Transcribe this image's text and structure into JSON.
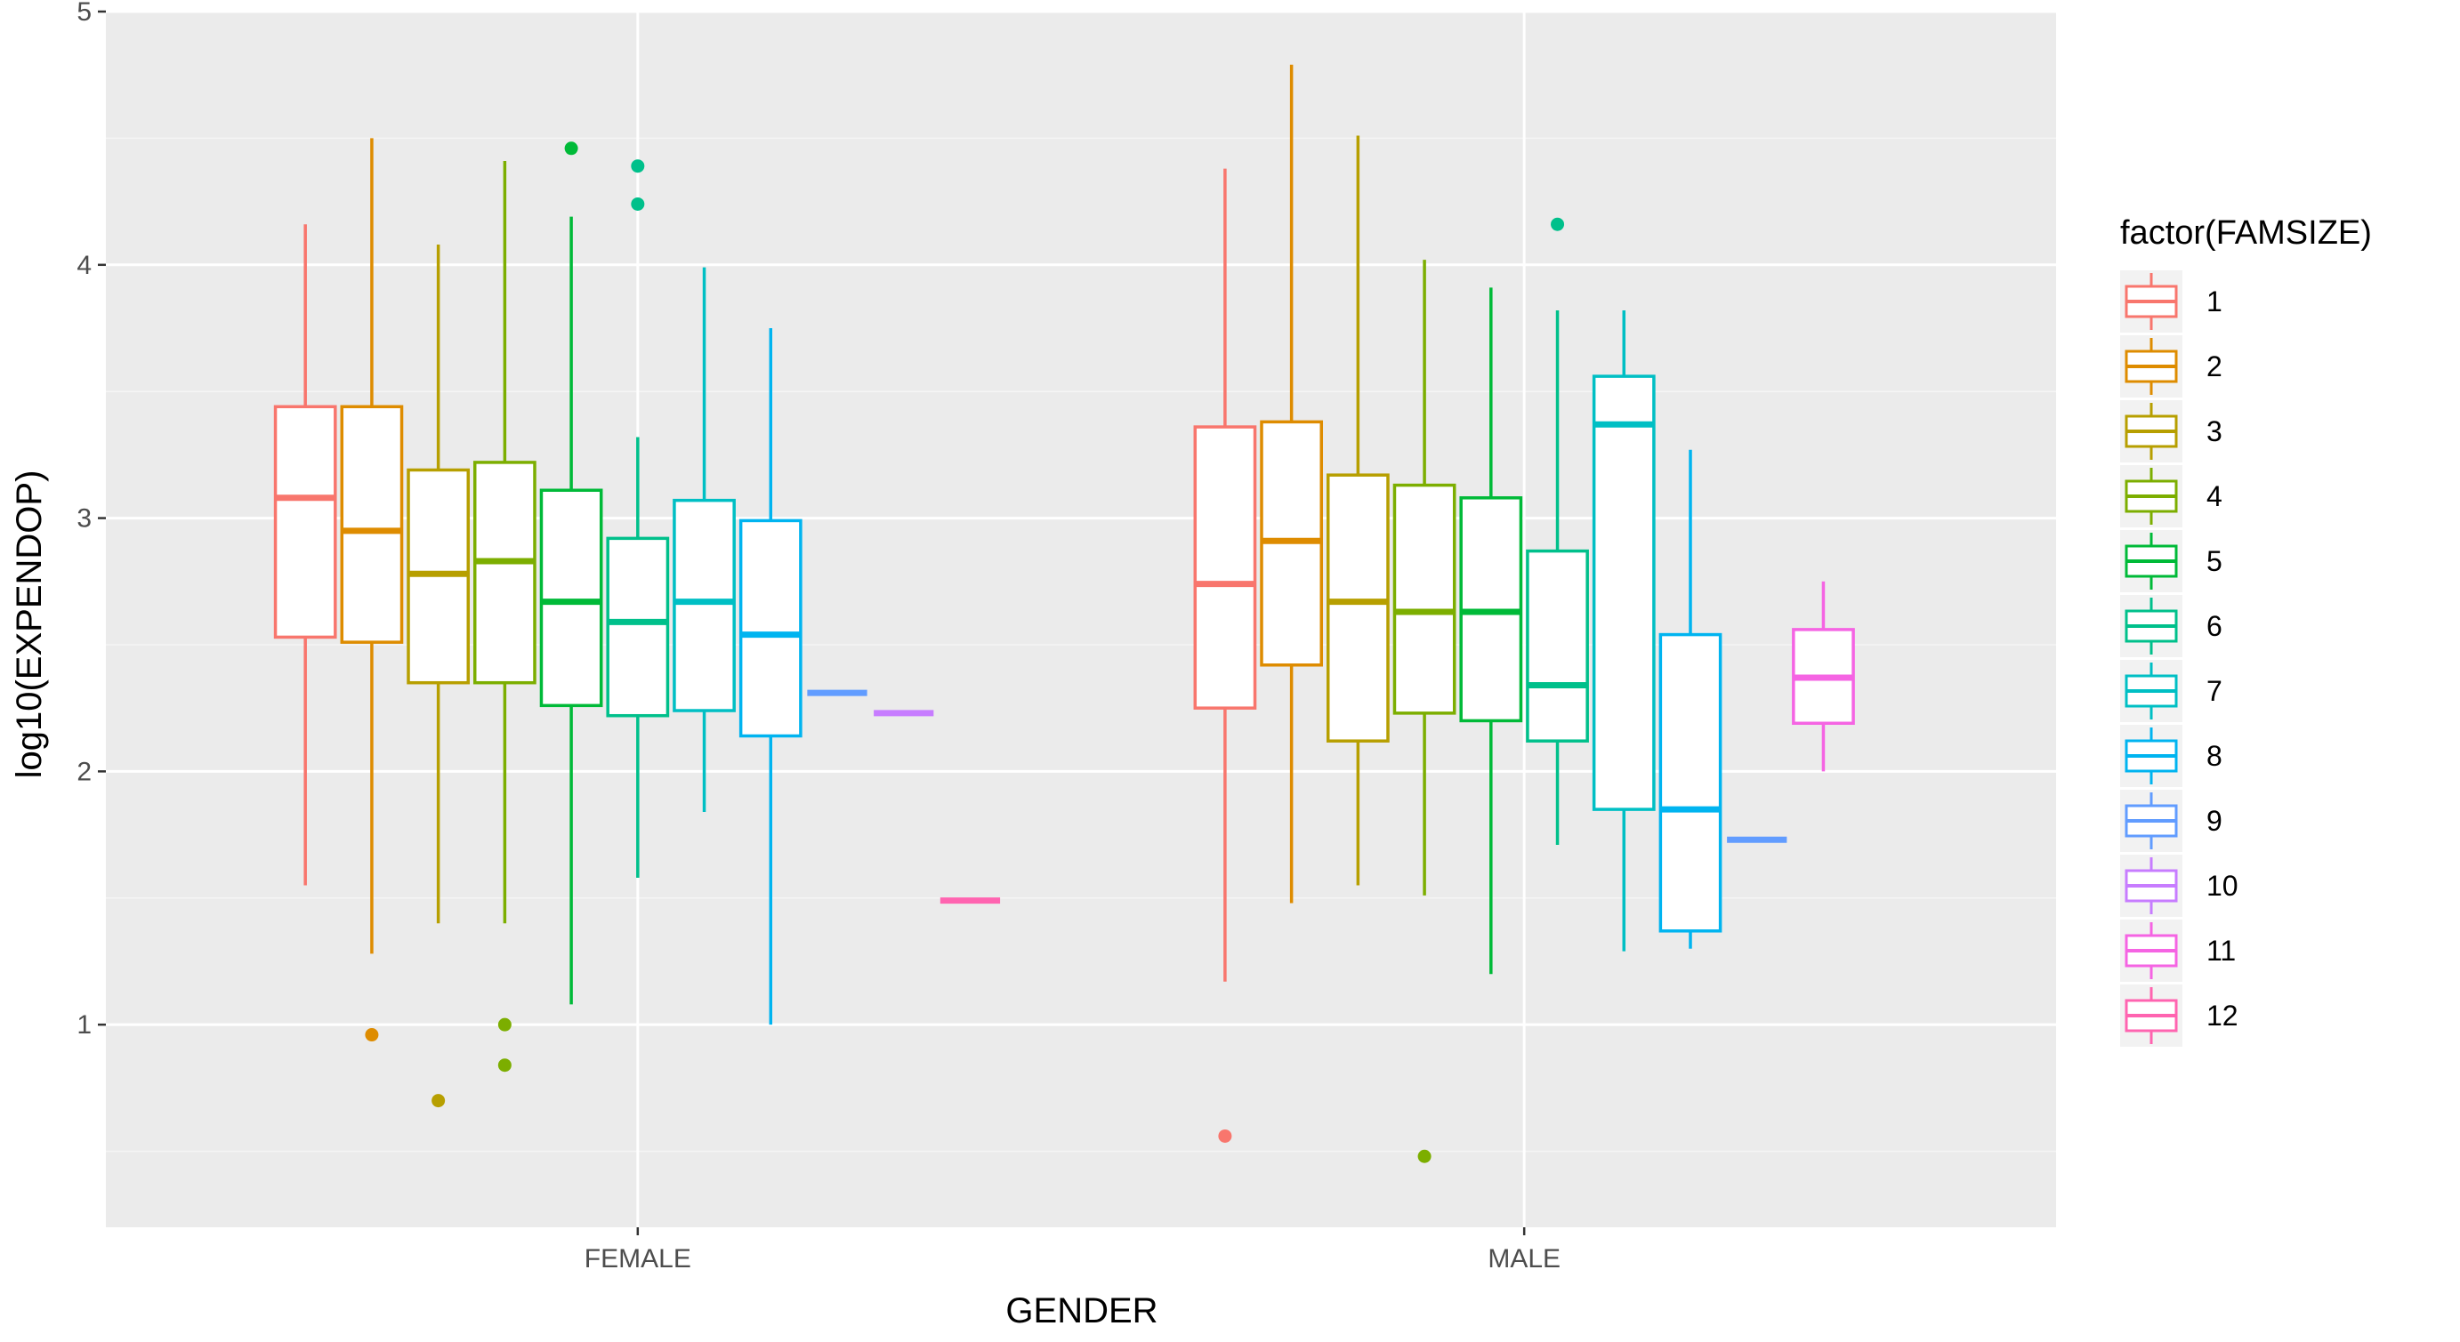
{
  "chart_data": {
    "type": "boxplot",
    "xlabel": "GENDER",
    "ylabel": "log10(EXPENDOP)",
    "categories": [
      "FEMALE",
      "MALE"
    ],
    "ylim": [
      0.2,
      5.0
    ],
    "yticks": [
      1,
      2,
      3,
      4,
      5
    ],
    "grid": true,
    "legend": {
      "title": "factor(FAMSIZE)",
      "position": "right"
    },
    "series": [
      {
        "name": "1",
        "color": "#F8766D",
        "boxes": [
          {
            "group": "FEMALE",
            "min": 1.55,
            "q1": 2.53,
            "median": 3.08,
            "q3": 3.44,
            "max": 4.16,
            "outliers": []
          },
          {
            "group": "MALE",
            "min": 1.17,
            "q1": 2.25,
            "median": 2.74,
            "q3": 3.36,
            "max": 4.38,
            "outliers": [
              0.56
            ]
          }
        ]
      },
      {
        "name": "2",
        "color": "#DE8C00",
        "boxes": [
          {
            "group": "FEMALE",
            "min": 1.28,
            "q1": 2.51,
            "median": 2.95,
            "q3": 3.44,
            "max": 4.5,
            "outliers": [
              0.96
            ]
          },
          {
            "group": "MALE",
            "min": 1.48,
            "q1": 2.42,
            "median": 2.91,
            "q3": 3.38,
            "max": 4.79,
            "outliers": []
          }
        ]
      },
      {
        "name": "3",
        "color": "#B79F00",
        "boxes": [
          {
            "group": "FEMALE",
            "min": 1.4,
            "q1": 2.35,
            "median": 2.78,
            "q3": 3.19,
            "max": 4.08,
            "outliers": [
              0.7
            ]
          },
          {
            "group": "MALE",
            "min": 1.55,
            "q1": 2.12,
            "median": 2.67,
            "q3": 3.17,
            "max": 4.51,
            "outliers": []
          }
        ]
      },
      {
        "name": "4",
        "color": "#7CAE00",
        "boxes": [
          {
            "group": "FEMALE",
            "min": 1.4,
            "q1": 2.35,
            "median": 2.83,
            "q3": 3.22,
            "max": 4.41,
            "outliers": [
              1.0,
              0.84
            ]
          },
          {
            "group": "MALE",
            "min": 1.51,
            "q1": 2.23,
            "median": 2.63,
            "q3": 3.13,
            "max": 4.02,
            "outliers": [
              0.48
            ]
          }
        ]
      },
      {
        "name": "5",
        "color": "#00BA38",
        "boxes": [
          {
            "group": "FEMALE",
            "min": 1.08,
            "q1": 2.26,
            "median": 2.67,
            "q3": 3.11,
            "max": 4.19,
            "outliers": [
              4.46
            ]
          },
          {
            "group": "MALE",
            "min": 1.2,
            "q1": 2.2,
            "median": 2.63,
            "q3": 3.08,
            "max": 3.91,
            "outliers": []
          }
        ]
      },
      {
        "name": "6",
        "color": "#00C08B",
        "boxes": [
          {
            "group": "FEMALE",
            "min": 1.58,
            "q1": 2.22,
            "median": 2.59,
            "q3": 2.92,
            "max": 3.32,
            "outliers": [
              4.39,
              4.24
            ]
          },
          {
            "group": "MALE",
            "min": 1.71,
            "q1": 2.12,
            "median": 2.34,
            "q3": 2.87,
            "max": 3.82,
            "outliers": [
              4.16
            ]
          }
        ]
      },
      {
        "name": "7",
        "color": "#00BFC4",
        "boxes": [
          {
            "group": "FEMALE",
            "min": 1.84,
            "q1": 2.24,
            "median": 2.67,
            "q3": 3.07,
            "max": 3.99,
            "outliers": []
          },
          {
            "group": "MALE",
            "min": 1.29,
            "q1": 1.85,
            "median": 3.37,
            "q3": 3.56,
            "max": 3.82,
            "outliers": []
          }
        ]
      },
      {
        "name": "8",
        "color": "#00B4F0",
        "boxes": [
          {
            "group": "FEMALE",
            "min": 1.0,
            "q1": 2.14,
            "median": 2.54,
            "q3": 2.99,
            "max": 3.75,
            "outliers": []
          },
          {
            "group": "MALE",
            "min": 1.3,
            "q1": 1.37,
            "median": 1.85,
            "q3": 2.54,
            "max": 3.27,
            "outliers": []
          }
        ]
      },
      {
        "name": "9",
        "color": "#619CFF",
        "boxes": [
          {
            "group": "FEMALE",
            "min": 2.31,
            "q1": 2.31,
            "median": 2.31,
            "q3": 2.31,
            "max": 2.31,
            "outliers": []
          },
          {
            "group": "MALE",
            "min": 1.73,
            "q1": 1.73,
            "median": 1.73,
            "q3": 1.73,
            "max": 1.73,
            "outliers": []
          }
        ]
      },
      {
        "name": "10",
        "color": "#C77CFF",
        "boxes": [
          {
            "group": "FEMALE",
            "min": 2.23,
            "q1": 2.23,
            "median": 2.23,
            "q3": 2.23,
            "max": 2.23,
            "outliers": []
          }
        ]
      },
      {
        "name": "11",
        "color": "#F564E3",
        "boxes": [
          {
            "group": "MALE",
            "min": 2.0,
            "q1": 2.19,
            "median": 2.37,
            "q3": 2.56,
            "max": 2.75,
            "outliers": []
          }
        ]
      },
      {
        "name": "12",
        "color": "#FF64B0",
        "boxes": [
          {
            "group": "FEMALE",
            "min": 1.49,
            "q1": 1.49,
            "median": 1.49,
            "q3": 1.49,
            "max": 1.49,
            "outliers": []
          }
        ]
      }
    ]
  },
  "colors": {
    "panel": "#EBEBEB",
    "grid_major": "#FFFFFF",
    "grid_minor": "#F5F5F5",
    "tick": "#333333"
  }
}
